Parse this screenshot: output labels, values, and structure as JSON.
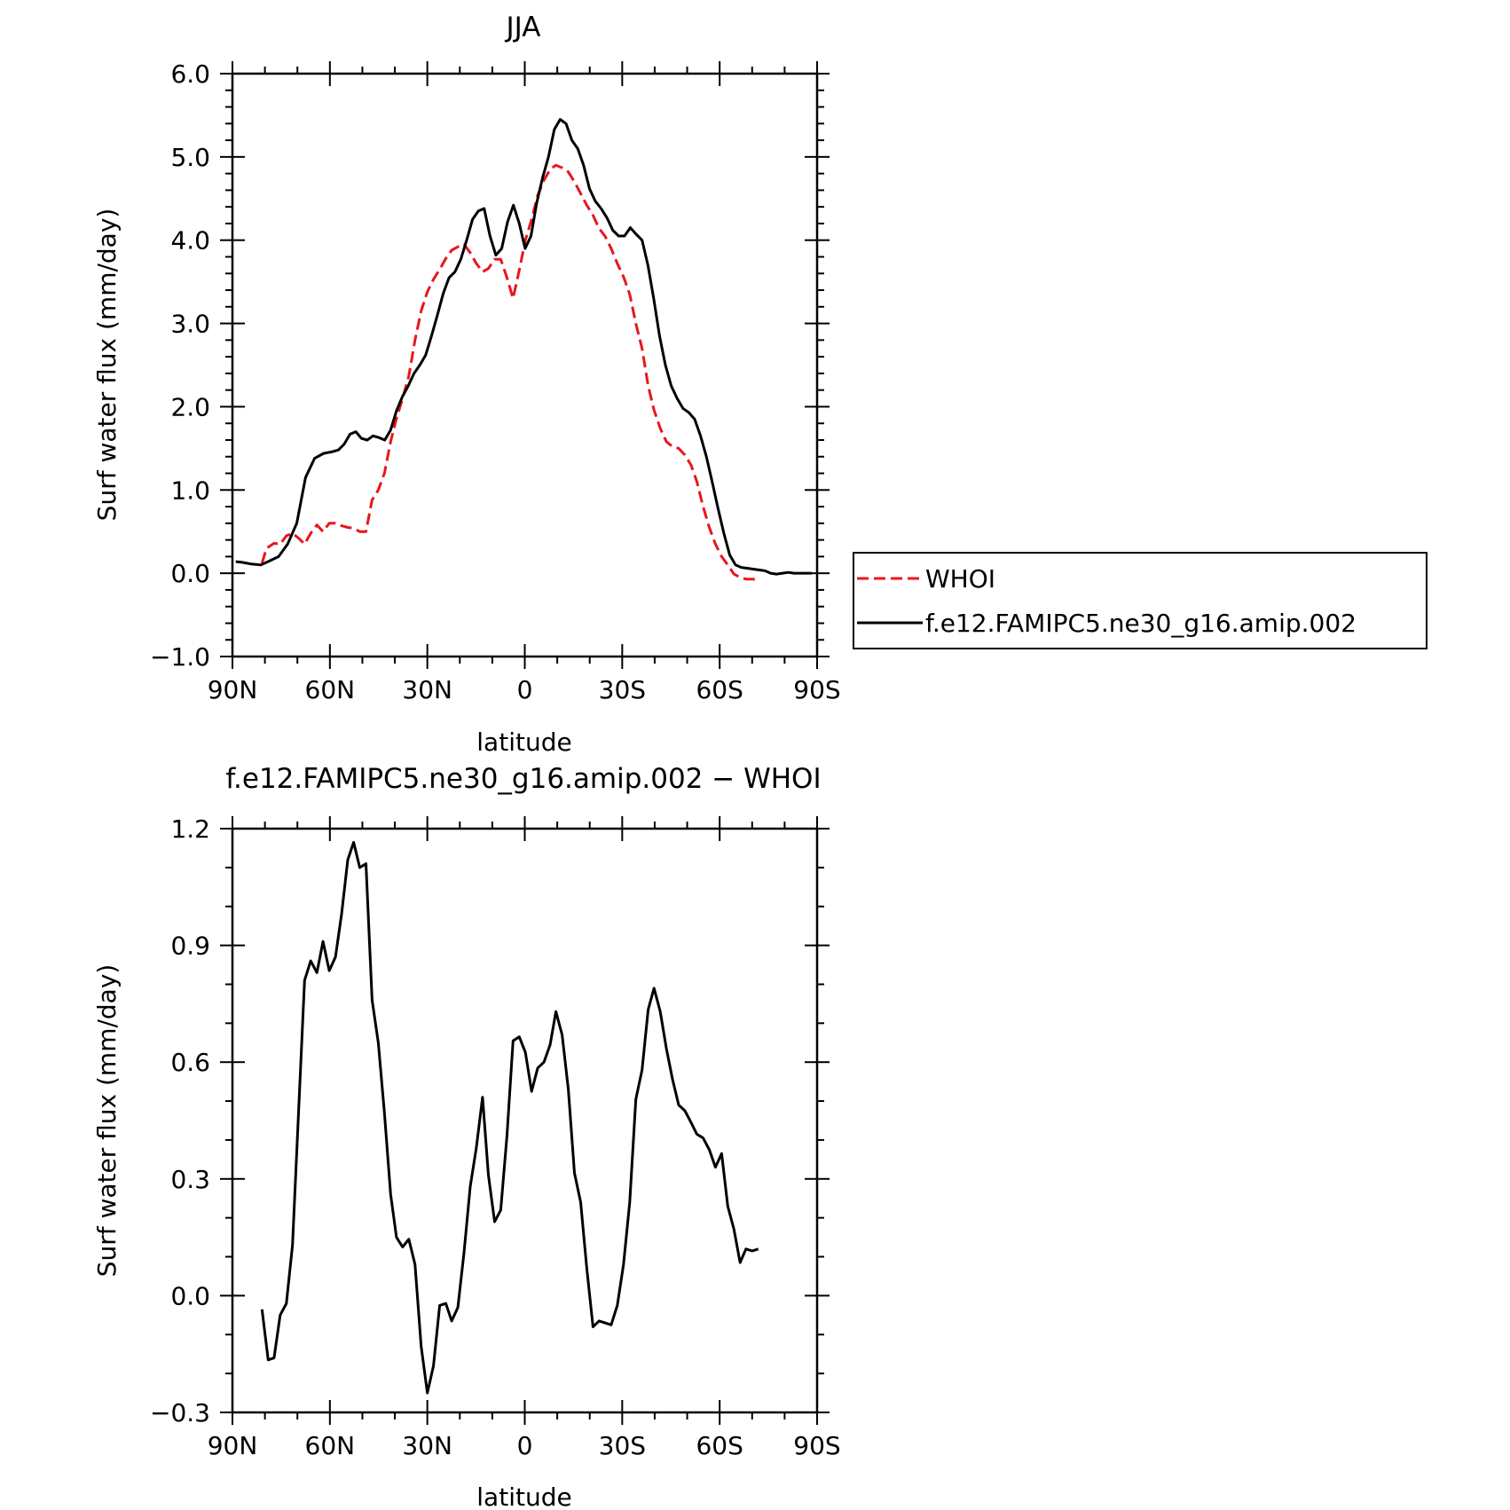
{
  "chart_data": [
    {
      "type": "line",
      "title": "JJA",
      "xlabel": "latitude",
      "ylabel": "Surf water flux (mm/day)",
      "xlim": [
        90,
        -90
      ],
      "ylim": [
        -1.0,
        6.0
      ],
      "xticks": [
        90,
        60,
        30,
        0,
        -30,
        -60,
        -90
      ],
      "xtick_labels": [
        "90N",
        "60N",
        "30N",
        "0",
        "30S",
        "60S",
        "90S"
      ],
      "yticks": [
        -1.0,
        0.0,
        1.0,
        2.0,
        3.0,
        4.0,
        5.0,
        6.0
      ],
      "ytick_labels": [
        "−1.0",
        "0.0",
        "1.0",
        "2.0",
        "3.0",
        "4.0",
        "5.0",
        "6.0"
      ],
      "grid": false,
      "legend": "outside-right",
      "series": [
        {
          "name": "WHOI",
          "color": "#e8161e",
          "dash": "dashed",
          "x": [
            80.9,
            79.5,
            77.2,
            75.3,
            73.4,
            71.5,
            69.6,
            67.8,
            65.9,
            64.0,
            62.1,
            60.2,
            58.3,
            56.4,
            54.5,
            52.7,
            50.8,
            48.9,
            47.0,
            45.1,
            43.2,
            41.3,
            39.5,
            37.6,
            35.7,
            33.8,
            31.9,
            30.0,
            28.1,
            26.2,
            24.3,
            22.5,
            20.6,
            18.7,
            16.8,
            14.9,
            13.0,
            11.2,
            9.3,
            7.4,
            5.5,
            3.6,
            1.7,
            -0.2,
            -2.1,
            -4.0,
            -5.9,
            -7.8,
            -9.6,
            -11.5,
            -13.4,
            -15.3,
            -17.2,
            -19.1,
            -21.0,
            -22.9,
            -24.7,
            -26.6,
            -28.5,
            -30.4,
            -32.3,
            -34.2,
            -36.1,
            -38.0,
            -39.8,
            -41.7,
            -43.6,
            -45.5,
            -47.4,
            -49.3,
            -51.2,
            -53.0,
            -54.9,
            -56.8,
            -58.7,
            -60.6,
            -62.5,
            -64.4,
            -66.3,
            -68.1,
            -70.0,
            -71.9
          ],
          "y": [
            0.12,
            0.3,
            0.36,
            0.35,
            0.45,
            0.48,
            0.42,
            0.35,
            0.48,
            0.58,
            0.5,
            0.6,
            0.6,
            0.57,
            0.55,
            0.54,
            0.5,
            0.5,
            0.88,
            1.0,
            1.2,
            1.58,
            1.86,
            2.1,
            2.37,
            2.8,
            3.15,
            3.38,
            3.53,
            3.65,
            3.78,
            3.88,
            3.92,
            3.95,
            3.85,
            3.72,
            3.62,
            3.66,
            3.77,
            3.77,
            3.55,
            3.3,
            3.64,
            4.0,
            4.25,
            4.54,
            4.72,
            4.85,
            4.9,
            4.87,
            4.82,
            4.7,
            4.56,
            4.42,
            4.3,
            4.14,
            4.05,
            3.9,
            3.72,
            3.56,
            3.35,
            3.0,
            2.7,
            2.25,
            1.96,
            1.74,
            1.58,
            1.52,
            1.5,
            1.42,
            1.3,
            1.1,
            0.8,
            0.55,
            0.35,
            0.2,
            0.1,
            -0.01,
            -0.05,
            -0.07,
            -0.07,
            -0.08
          ]
        },
        {
          "name": "f.e12.FAMIPC5.ne30_g16.amip.002",
          "color": "#000000",
          "dash": "solid",
          "x": [
            89.0,
            86.9,
            84.1,
            81.3,
            78.5,
            75.8,
            73.0,
            70.2,
            67.5,
            64.7,
            61.9,
            59.2,
            57.4,
            55.6,
            53.8,
            52.0,
            50.3,
            48.5,
            46.7,
            44.9,
            43.1,
            41.3,
            39.5,
            37.7,
            35.9,
            34.1,
            32.3,
            30.5,
            28.7,
            26.9,
            25.1,
            23.3,
            21.5,
            19.7,
            17.9,
            16.1,
            14.3,
            12.5,
            10.7,
            8.9,
            7.1,
            5.3,
            3.5,
            1.7,
            -0.1,
            -1.9,
            -3.7,
            -5.5,
            -7.3,
            -9.1,
            -10.9,
            -12.7,
            -14.5,
            -16.3,
            -18.1,
            -19.9,
            -21.7,
            -23.5,
            -25.3,
            -27.1,
            -28.9,
            -30.7,
            -32.5,
            -34.3,
            -36.1,
            -37.9,
            -39.7,
            -41.5,
            -43.3,
            -45.1,
            -46.9,
            -48.7,
            -50.5,
            -52.3,
            -54.1,
            -55.9,
            -57.7,
            -59.5,
            -61.3,
            -63.1,
            -64.9,
            -66.7,
            -68.5,
            -70.3,
            -72.1,
            -73.9,
            -75.7,
            -77.5,
            -79.3,
            -81.1,
            -82.9,
            -84.7,
            -86.5,
            -88.3
          ],
          "y": [
            0.14,
            0.13,
            0.11,
            0.1,
            0.15,
            0.2,
            0.35,
            0.6,
            1.15,
            1.38,
            1.44,
            1.46,
            1.48,
            1.55,
            1.67,
            1.7,
            1.62,
            1.6,
            1.65,
            1.63,
            1.6,
            1.72,
            1.95,
            2.12,
            2.25,
            2.4,
            2.5,
            2.62,
            2.85,
            3.1,
            3.36,
            3.55,
            3.62,
            3.77,
            4.0,
            4.25,
            4.35,
            4.38,
            4.05,
            3.82,
            3.9,
            4.22,
            4.42,
            4.2,
            3.9,
            4.05,
            4.45,
            4.75,
            5.0,
            5.33,
            5.45,
            5.4,
            5.2,
            5.1,
            4.9,
            4.62,
            4.47,
            4.38,
            4.27,
            4.12,
            4.05,
            4.05,
            4.15,
            4.07,
            4.0,
            3.7,
            3.3,
            2.85,
            2.5,
            2.25,
            2.1,
            1.98,
            1.93,
            1.85,
            1.65,
            1.4,
            1.1,
            0.78,
            0.48,
            0.22,
            0.1,
            0.07,
            0.06,
            0.05,
            0.04,
            0.03,
            0.0,
            -0.01,
            0.0,
            0.01,
            0.0,
            0.0,
            0.0,
            0.0
          ]
        }
      ]
    },
    {
      "type": "line",
      "title": "f.e12.FAMIPC5.ne30_g16.amip.002 − WHOI",
      "xlabel": "latitude",
      "ylabel": "Surf water flux (mm/day)",
      "xlim": [
        90,
        -90
      ],
      "ylim": [
        -0.3,
        1.2
      ],
      "xticks": [
        90,
        60,
        30,
        0,
        -30,
        -60,
        -90
      ],
      "xtick_labels": [
        "90N",
        "60N",
        "30N",
        "0",
        "30S",
        "60S",
        "90S"
      ],
      "yticks": [
        -0.3,
        0.0,
        0.3,
        0.6,
        0.9,
        1.2
      ],
      "ytick_labels": [
        "−0.3",
        "0.0",
        "0.3",
        "0.6",
        "0.9",
        "1.2"
      ],
      "grid": false,
      "series": [
        {
          "color": "#000000",
          "dash": "solid",
          "x": [
            80.9,
            79.0,
            77.2,
            75.3,
            73.4,
            71.5,
            69.6,
            67.8,
            65.9,
            64.0,
            62.1,
            60.2,
            58.3,
            56.4,
            54.5,
            52.7,
            50.8,
            48.9,
            47.0,
            45.1,
            43.2,
            41.3,
            39.5,
            37.6,
            35.7,
            33.8,
            31.9,
            30.0,
            28.1,
            26.2,
            24.3,
            22.5,
            20.6,
            18.7,
            16.8,
            14.9,
            13.0,
            11.2,
            9.3,
            7.4,
            5.5,
            3.6,
            1.7,
            -0.2,
            -2.1,
            -4.0,
            -5.9,
            -7.8,
            -9.6,
            -11.5,
            -13.4,
            -15.3,
            -17.2,
            -19.1,
            -21.0,
            -22.9,
            -24.7,
            -26.6,
            -28.5,
            -30.4,
            -32.3,
            -34.2,
            -36.1,
            -38.0,
            -39.8,
            -41.7,
            -43.6,
            -45.5,
            -47.4,
            -49.3,
            -51.2,
            -53.0,
            -54.9,
            -56.8,
            -58.7,
            -60.6,
            -62.5,
            -64.4,
            -66.3,
            -68.1,
            -70.0,
            -71.9
          ],
          "y": [
            -0.035,
            -0.165,
            -0.16,
            -0.05,
            -0.02,
            0.13,
            0.48,
            0.81,
            0.86,
            0.83,
            0.91,
            0.835,
            0.87,
            0.98,
            1.12,
            1.165,
            1.1,
            1.11,
            0.76,
            0.65,
            0.47,
            0.26,
            0.15,
            0.125,
            0.145,
            0.08,
            -0.13,
            -0.25,
            -0.18,
            -0.025,
            -0.02,
            -0.065,
            -0.03,
            0.11,
            0.28,
            0.38,
            0.51,
            0.31,
            0.19,
            0.22,
            0.41,
            0.655,
            0.665,
            0.625,
            0.525,
            0.585,
            0.6,
            0.645,
            0.73,
            0.67,
            0.53,
            0.315,
            0.24,
            0.07,
            -0.08,
            -0.065,
            -0.07,
            -0.075,
            -0.025,
            0.08,
            0.24,
            0.505,
            0.58,
            0.735,
            0.79,
            0.73,
            0.635,
            0.555,
            0.49,
            0.475,
            0.445,
            0.415,
            0.405,
            0.375,
            0.33,
            0.365,
            0.23,
            0.17,
            0.085,
            0.12,
            0.115,
            0.12
          ]
        }
      ]
    }
  ]
}
